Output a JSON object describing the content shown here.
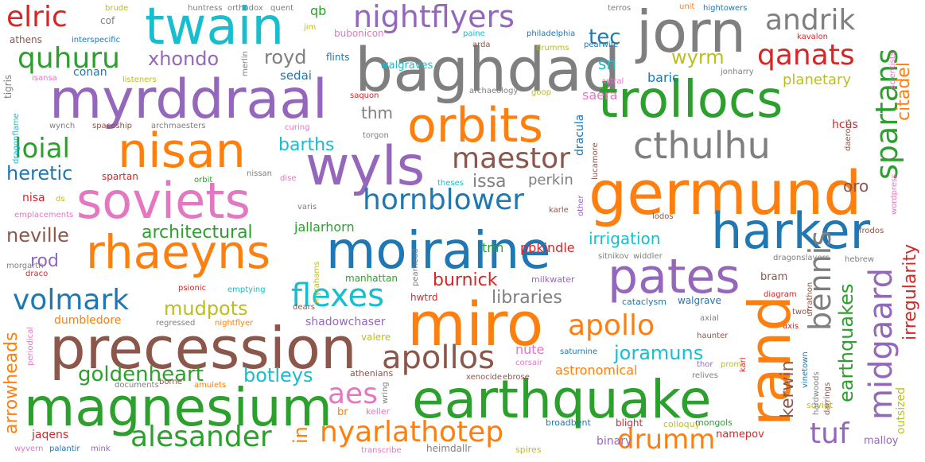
{
  "colors": {
    "blue": "#1f77b4",
    "orange": "#ff7f0e",
    "green": "#2ca02c",
    "red": "#d62728",
    "purple": "#9467bd",
    "brown": "#8c564b",
    "pink": "#e377c2",
    "gray": "#7f7f7f",
    "olive": "#bcbd22",
    "cyan": "#17becf"
  },
  "words": {
    "baghdad": "baghdad",
    "jorn": "jorn",
    "twain": "twain",
    "elric": "elric",
    "nightflyers": "nightflyers",
    "andrik": "andrik",
    "quhuru": "quhuru",
    "xhondo": "xhondo",
    "tec": "tec",
    "qanats": "qanats",
    "wyrm": "wyrm",
    "citadel": "citadel",
    "myrddraal": "myrddraal",
    "trollocs": "trollocs",
    "orbits": "orbits",
    "nisan": "nisan",
    "cthulhu": "cthulhu",
    "spartans": "spartans",
    "wyls": "wyls",
    "germund": "germund",
    "soviets": "soviets",
    "maestor": "maestor",
    "loial": "loial",
    "barths": "barths",
    "heretic": "heretic",
    "hornblower": "hornblower",
    "harker": "harker",
    "rhaeyns": "rhaeyns",
    "moiraine": "moiraine",
    "pates": "pates",
    "bennis": "bennis",
    "rand": "rand",
    "miro": "miro",
    "precession": "precession",
    "earthquake": "earthquake",
    "magnesium": "magnesium",
    "volmark": "volmark",
    "flexes": "flexes",
    "apollo": "apollo",
    "apollos": "apollos",
    "aes": "aes",
    "alesander": "alesander",
    "nyarlathotep": "nyarlathotep",
    "drumm": "drumm",
    "tuf": "tuf",
    "midgaard": "midgaard",
    "kerwin": "kerwin",
    "earthquakes": "earthquakes",
    "irregularity": "irregularity",
    "goldenheart": "goldenheart",
    "botleys": "botleys",
    "joramuns": "joramuns",
    "mudpots": "mudpots",
    "neville": "neville",
    "architectural": "architectural",
    "irrigation": "irrigation",
    "burnick": "burnick",
    "libraries": "libraries",
    "rod": "rod",
    "royd": "royd",
    "planetary": "planetary",
    "baric": "baric",
    "thm": "thm",
    "sn": "sn",
    "saera": "saera",
    "issa": "issa",
    "perkin": "perkin",
    "oro": "oro",
    "arrowheads": "arrowheads",
    "astronomical": "astronomical",
    "nute": "nute",
    "pbkindle": "pbkindle",
    "trin": "trin",
    "jallarhorn": "jallarhorn",
    "in": "in",
    "qb": "qb",
    "outsized": "outsized",
    "dracula": "dracula",
    "hcus": "hcus",
    "sedai": "sedai",
    "conan": "conan",
    "dumbledore": "dumbledore",
    "shadowchaser": "shadowchaser",
    "jaqens": "jaqens",
    "walgraves": "walgraves",
    "bubonicon": "bubonicon",
    "flints": "flints",
    "nisa": "nisa",
    "spartan": "spartan",
    "cof": "cof",
    "athens": "athens",
    "huntress": "huntress",
    "orthodox": "orthodox",
    "brude": "brude",
    "quent": "quent",
    "terros": "terros",
    "unit": "unit",
    "hightowers": "hightowers",
    "interspecific": "interspecific",
    "jim": "jim",
    "paine": "paine",
    "philadelphia": "philadelphia",
    "kavalon": "kavalon",
    "arda": "arda",
    "drumms": "drumms",
    "pearwife": "pearwife",
    "isansa": "isansa",
    "merlin": "merlin",
    "listeners": "listeners",
    "astral": "astral",
    "jonharry": "jonharry",
    "scientists": "scientists",
    "tigris": "tigris",
    "saquon": "saquon",
    "archaeology": "archaeology",
    "goop": "goop",
    "dragonflame": "dragonflame",
    "wynch": "wynch",
    "spaceship": "spaceship",
    "archmaesters": "archmaesters",
    "curing": "curing",
    "torgon": "torgon",
    "lucamore": "lucamore",
    "daerons": "daerons",
    "orbit": "orbit",
    "nissan": "nissan",
    "dise": "dise",
    "theses": "theses",
    "other": "other",
    "karle": "karle",
    "lodos": "lodos",
    "frodos": "frodos",
    "wordpress": "wordpress",
    "ds": "ds",
    "emplacements": "emplacements",
    "varis": "varis",
    "morgarth": "morgarth",
    "draco": "draco",
    "psionic": "psionic",
    "emptying": "emptying",
    "myrahams": "myrahams",
    "pearhead": "pearhead",
    "manhattan": "manhattan",
    "milkwater": "milkwater",
    "sitnikov": "sitnikov",
    "widdler": "widdler",
    "dragonslayers": "dragonslayers",
    "hebrew": "hebrew",
    "urrathon": "urrathon",
    "bram": "bram",
    "diagram": "diagram",
    "cataclysm": "cataclysm",
    "walgrave": "walgrave",
    "dears": "dears",
    "hwtrd": "hwtrd",
    "regressed": "regressed",
    "nightflyer": "nightflyer",
    "twot": "twot",
    "axial": "axial",
    "haunter": "haunter",
    "axis": "axis",
    "periodical": "periodical",
    "valere": "valere",
    "saturnine": "saturnine",
    "vinetown": "vinetown",
    "kari": "kari",
    "athenians": "athenians",
    "corsair": "corsair",
    "thor": "thor",
    "prom": "prom",
    "relives": "relives",
    "xenocide": "xenocide",
    "ebrose": "ebrose",
    "hardwoods": "hardwoods",
    "darrings": "darrings",
    "wring": "wring",
    "documents": "documents",
    "borne": "borne",
    "amulets": "amulets",
    "br": "br",
    "keller": "keller",
    "soviet": "soviet",
    "broadbent": "broadbent",
    "blight": "blight",
    "colloquy": "colloquy",
    "mongols": "mongols",
    "namepov": "namepov",
    "binary": "binary",
    "malloy": "malloy",
    "wyvern": "wyvern",
    "palantir": "palantir",
    "mink": "mink",
    "transcribe": "transcribe",
    "heimdallr": "heimdallr",
    "spires": "spires"
  }
}
